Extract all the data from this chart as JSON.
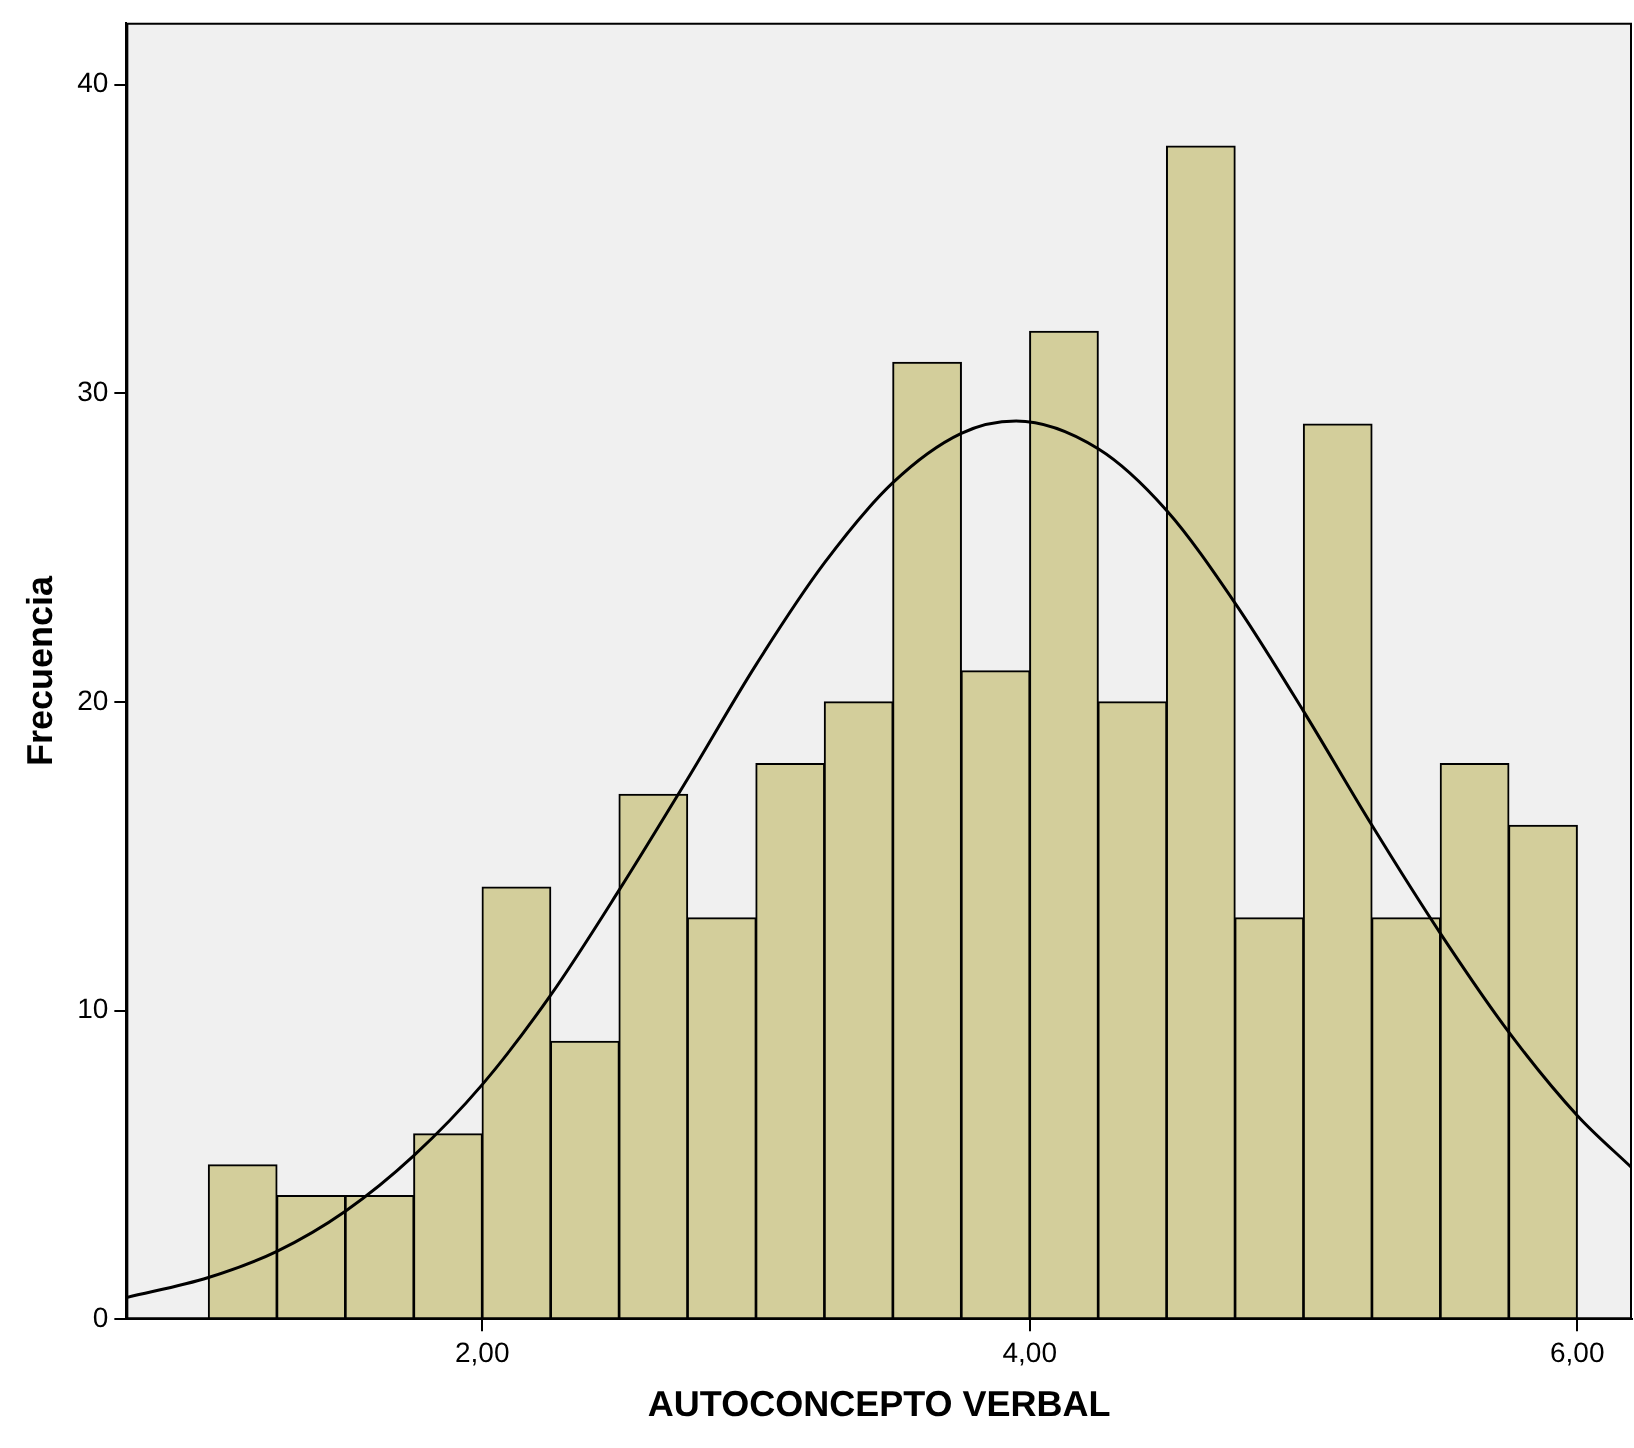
{
  "chart_data": {
    "type": "histogram",
    "xlabel": "AUTOCONCEPTO VERBAL",
    "ylabel": "Frecuencia",
    "bins": [
      1,
      1.25,
      1.5,
      1.75,
      2,
      2.25,
      2.5,
      2.75,
      3,
      3.25,
      3.5,
      3.75,
      4,
      4.25,
      4.5,
      4.75,
      5,
      5.25,
      5.5,
      5.75,
      6
    ],
    "values": [
      5,
      4,
      4,
      6,
      14,
      9,
      17,
      13,
      18,
      20,
      31,
      21,
      32,
      20,
      38,
      13,
      29,
      13,
      18,
      16
    ],
    "color": "#d3ce9b",
    "series": [
      {
        "type": "line",
        "color": "#000000",
        "x": [
          0.7,
          1,
          1.25,
          1.5,
          1.75,
          2,
          2.25,
          2.5,
          2.75,
          3,
          3.25,
          3.5,
          3.75,
          3.95,
          4.25,
          4.5,
          4.75,
          5,
          5.25,
          5.5,
          5.75,
          6,
          6.2
        ],
        "values": [
          0.7,
          1.35,
          2.2,
          3.5,
          5.3,
          7.6,
          10.5,
          13.9,
          17.5,
          21.2,
          24.5,
          27.1,
          28.7,
          29.1,
          28.2,
          26.2,
          23.2,
          19.7,
          16,
          12.5,
          9.3,
          6.6,
          4.9
        ]
      }
    ],
    "xlim": [
      0.7,
      6.2
    ],
    "xticks": [
      {
        "value": 2,
        "label": "2,00"
      },
      {
        "value": 4,
        "label": "4,00"
      },
      {
        "value": 6,
        "label": "6,00"
      }
    ],
    "ylim": [
      0,
      42
    ],
    "yticks": [
      0,
      10,
      20,
      30,
      40
    ],
    "grid": false,
    "legend": false,
    "marker": "none"
  }
}
